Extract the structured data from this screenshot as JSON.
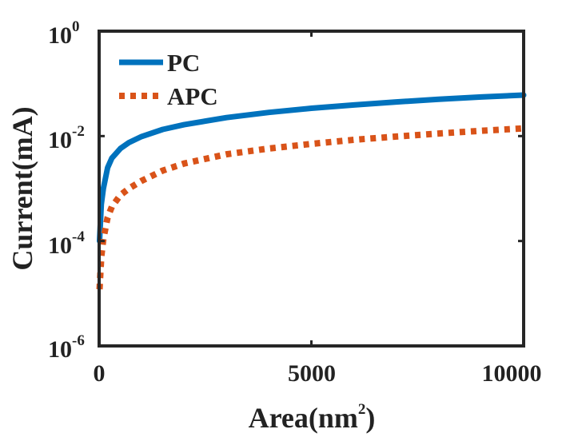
{
  "chart_data": {
    "type": "line",
    "title": "",
    "xlabel": {
      "base": "Area(nm",
      "superscript": "2",
      "suffix": ")"
    },
    "ylabel": "Current(mA)",
    "xscale": "linear",
    "yscale": "log",
    "xlim": [
      0,
      10000
    ],
    "ylim": [
      1e-06,
      1
    ],
    "x_ticks": [
      0,
      5000,
      10000
    ],
    "x_tick_labels": [
      "0",
      "5000",
      "10000"
    ],
    "y_ticks": [
      {
        "value": 1e-06,
        "base": "10",
        "exp": "-6"
      },
      {
        "value": 0.0001,
        "base": "10",
        "exp": "-4"
      },
      {
        "value": 0.01,
        "base": "10",
        "exp": "-2"
      },
      {
        "value": 1,
        "base": "10",
        "exp": "0"
      }
    ],
    "grid": false,
    "legend_position": "top-left",
    "series": [
      {
        "name": "PC",
        "style": "solid",
        "color": "#0072BD",
        "x": [
          10,
          50,
          100,
          200,
          300,
          500,
          700,
          1000,
          1500,
          2000,
          3000,
          4000,
          5000,
          6000,
          7000,
          8000,
          9000,
          10000
        ],
        "y": [
          0.0001,
          0.0005,
          0.001,
          0.0025,
          0.0038,
          0.0058,
          0.0075,
          0.0098,
          0.0134,
          0.0165,
          0.0225,
          0.0283,
          0.0339,
          0.0392,
          0.0448,
          0.0502,
          0.0556,
          0.0605
        ]
      },
      {
        "name": "APC",
        "style": "dotted",
        "color": "#D95319",
        "x": [
          10,
          30,
          50,
          100,
          200,
          300,
          500,
          700,
          1000,
          1500,
          2000,
          3000,
          4000,
          5000,
          6000,
          7000,
          8000,
          9000,
          10000
        ],
        "y": [
          1.2e-05,
          2.5e-05,
          5e-05,
          0.00011,
          0.00028,
          0.00045,
          0.00075,
          0.001,
          0.0014,
          0.0022,
          0.003,
          0.0045,
          0.0058,
          0.0071,
          0.0085,
          0.0098,
          0.0112,
          0.0126,
          0.014
        ]
      }
    ]
  }
}
